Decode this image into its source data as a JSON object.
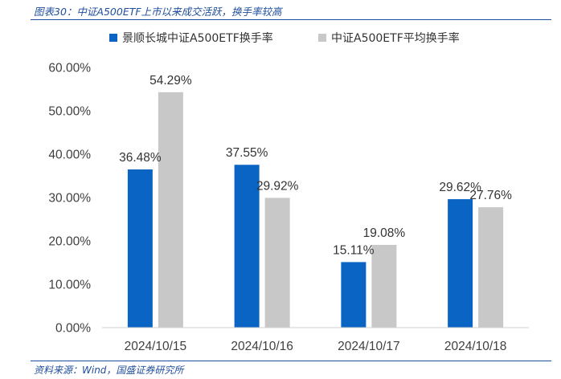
{
  "caption": "图表30：中证A500ETF上市以来成交活跃，换手率较高",
  "source": "资料来源：Wind，国盛证券研究所",
  "chart_data": {
    "type": "bar",
    "categories": [
      "2024/10/15",
      "2024/10/16",
      "2024/10/17",
      "2024/10/18"
    ],
    "series": [
      {
        "name": "景顺长城中证A500ETF换手率",
        "color": "#0a64c4",
        "values": [
          36.48,
          37.55,
          15.11,
          29.62
        ],
        "labels": [
          "36.48%",
          "37.55%",
          "15.11%",
          "29.62%"
        ]
      },
      {
        "name": "中证A500ETF平均换手率",
        "color": "#c8c8c8",
        "values": [
          54.29,
          29.92,
          19.08,
          27.76
        ],
        "labels": [
          "54.29%",
          "29.92%",
          "19.08%",
          "27.76%"
        ]
      }
    ],
    "ylim": [
      0,
      60
    ],
    "yticks": [
      "0.00%",
      "10.00%",
      "20.00%",
      "30.00%",
      "40.00%",
      "50.00%",
      "60.00%"
    ],
    "ytick_values": [
      0,
      10,
      20,
      30,
      40,
      50,
      60
    ],
    "grid": false,
    "legend": "top"
  }
}
